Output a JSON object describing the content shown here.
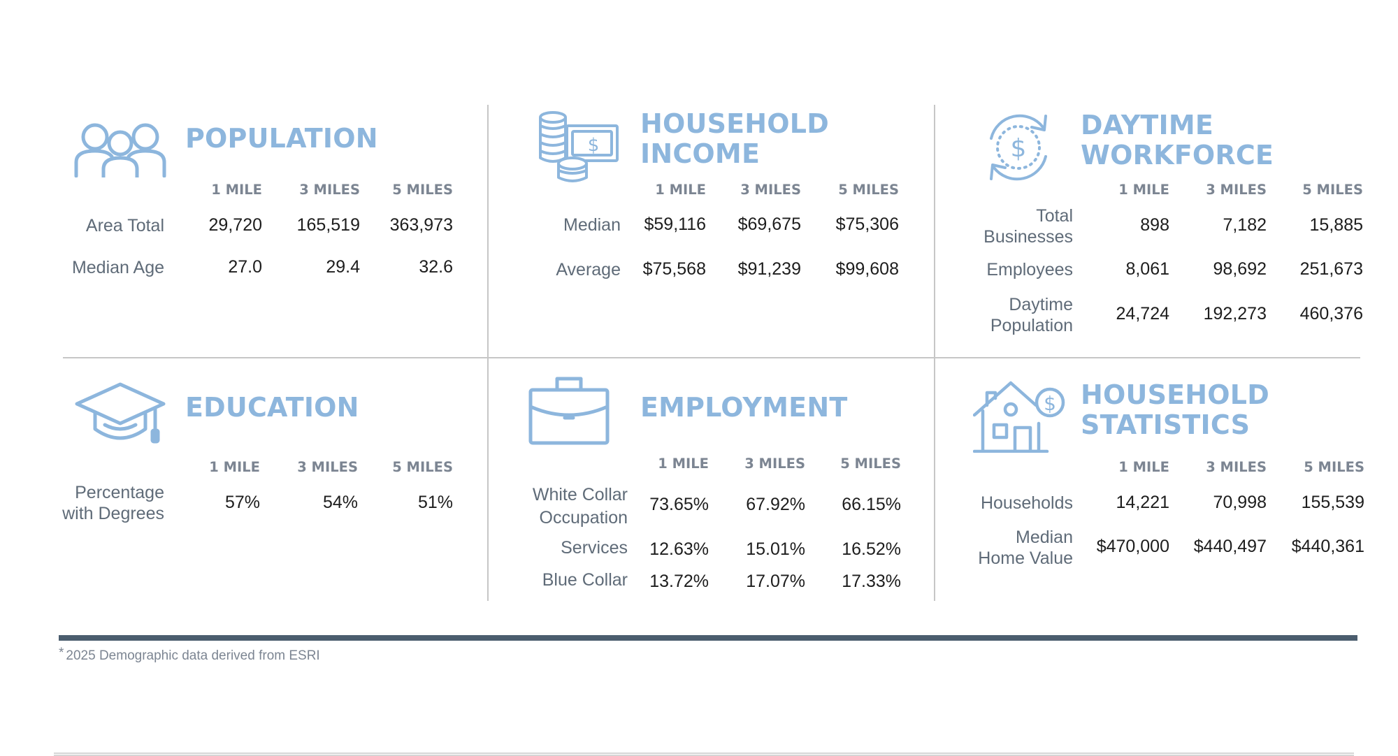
{
  "colors": {
    "accent": "#8db6dd",
    "footer_bar": "#4b5d6e"
  },
  "sections": {
    "population": {
      "title": [
        "POPULATION"
      ],
      "icon": "people-icon",
      "headers": [
        "1 MILE",
        "3 MILES",
        "5 MILES"
      ],
      "rows": [
        {
          "label": [
            "Area Total"
          ],
          "values": [
            "29,720",
            "165,519",
            "363,973"
          ]
        },
        {
          "label": [
            "Median Age"
          ],
          "values": [
            "27.0",
            "29.4",
            "32.6"
          ]
        }
      ]
    },
    "household_income": {
      "title": [
        "HOUSEHOLD",
        "INCOME"
      ],
      "icon": "coins-money-icon",
      "headers": [
        "1 MILE",
        "3 MILES",
        "5 MILES"
      ],
      "rows": [
        {
          "label": [
            "Median"
          ],
          "values": [
            "$59,116",
            "$69,675",
            "$75,306"
          ]
        },
        {
          "label": [
            "Average"
          ],
          "values": [
            "$75,568",
            "$91,239",
            "$99,608"
          ]
        }
      ]
    },
    "daytime_workforce": {
      "title": [
        "DAYTIME",
        "WORKFORCE"
      ],
      "icon": "dollar-cycle-icon",
      "headers": [
        "1 MILE",
        "3 MILES",
        "5 MILES"
      ],
      "rows": [
        {
          "label": [
            "Total",
            "Businesses"
          ],
          "values": [
            "898",
            "7,182",
            "15,885"
          ]
        },
        {
          "label": [
            "Employees"
          ],
          "values": [
            "8,061",
            "98,692",
            "251,673"
          ]
        },
        {
          "label": [
            "Daytime",
            "Population"
          ],
          "values": [
            "24,724",
            "192,273",
            "460,376"
          ]
        }
      ]
    },
    "education": {
      "title": [
        "EDUCATION"
      ],
      "icon": "graduation-cap-icon",
      "headers": [
        "1 MILE",
        "3 MILES",
        "5 MILES"
      ],
      "rows": [
        {
          "label": [
            "Percentage",
            "with Degrees"
          ],
          "values": [
            "57%",
            "54%",
            "51%"
          ]
        }
      ]
    },
    "employment": {
      "title": [
        "EMPLOYMENT"
      ],
      "icon": "briefcase-icon",
      "headers": [
        "1 MILE",
        "3 MILES",
        "5 MILES"
      ],
      "rows": [
        {
          "label": [
            "White Collar",
            "Occupation"
          ],
          "values": [
            "73.65%",
            "67.92%",
            "66.15%"
          ]
        },
        {
          "label": [
            "Services"
          ],
          "values": [
            "12.63%",
            "15.01%",
            "16.52%"
          ]
        },
        {
          "label": [
            "Blue Collar"
          ],
          "values": [
            "13.72%",
            "17.07%",
            "17.33%"
          ]
        }
      ]
    },
    "household_statistics": {
      "title": [
        "HOUSEHOLD",
        "STATISTICS"
      ],
      "icon": "house-dollar-icon",
      "headers": [
        "1 MILE",
        "3 MILES",
        "5 MILES"
      ],
      "rows": [
        {
          "label": [
            "Households"
          ],
          "values": [
            "14,221",
            "70,998",
            "155,539"
          ]
        },
        {
          "label": [
            "Median",
            "Home Value"
          ],
          "values": [
            "$470,000",
            "$440,497",
            "$440,361"
          ]
        }
      ]
    }
  },
  "footnote": {
    "star": "*",
    "text": "2025 Demographic data derived from ESRI"
  }
}
